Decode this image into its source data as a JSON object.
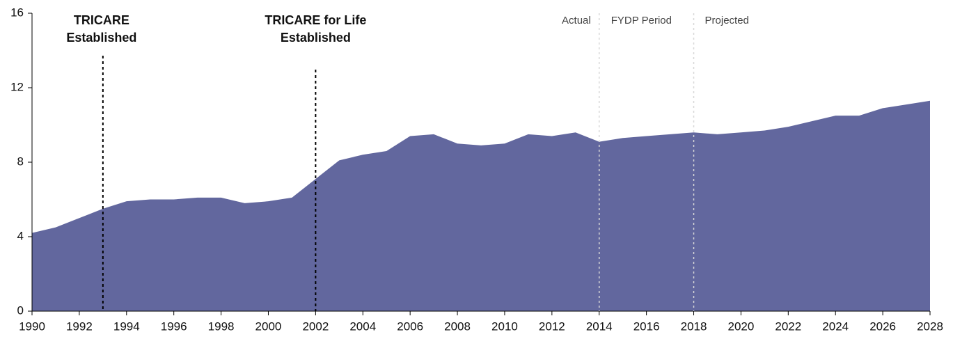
{
  "chart_data": {
    "type": "area",
    "x": [
      1990,
      1991,
      1992,
      1993,
      1994,
      1995,
      1996,
      1997,
      1998,
      1999,
      2000,
      2001,
      2002,
      2003,
      2004,
      2005,
      2006,
      2007,
      2008,
      2009,
      2010,
      2011,
      2012,
      2013,
      2014,
      2015,
      2016,
      2017,
      2018,
      2019,
      2020,
      2021,
      2022,
      2023,
      2024,
      2025,
      2026,
      2027,
      2028
    ],
    "values": [
      4.2,
      4.5,
      5.0,
      5.5,
      5.9,
      6.0,
      6.0,
      6.1,
      6.1,
      5.8,
      5.9,
      6.1,
      7.1,
      8.1,
      8.4,
      8.6,
      9.4,
      9.5,
      9.0,
      8.9,
      9.0,
      9.5,
      9.4,
      9.6,
      9.1,
      9.3,
      9.4,
      9.5,
      9.6,
      9.5,
      9.6,
      9.7,
      9.9,
      10.2,
      10.5,
      10.5,
      10.9,
      11.1,
      11.3
    ],
    "color": "#62679e",
    "xlim": [
      1990,
      2028
    ],
    "xticks": [
      1990,
      1992,
      1994,
      1996,
      1998,
      2000,
      2002,
      2004,
      2006,
      2008,
      2010,
      2012,
      2014,
      2016,
      2018,
      2020,
      2022,
      2024,
      2026,
      2028
    ],
    "ylim": [
      0,
      16
    ],
    "yticks": [
      0,
      4,
      8,
      12,
      16
    ],
    "events": [
      {
        "x": 1993,
        "label": [
          "TRICARE",
          "Established"
        ]
      },
      {
        "x": 2002,
        "label": [
          "TRICARE for Life",
          "Established"
        ]
      }
    ],
    "dividers": [
      2014,
      2018
    ],
    "periods": [
      "Actual",
      "FYDP Period",
      "Projected"
    ]
  }
}
